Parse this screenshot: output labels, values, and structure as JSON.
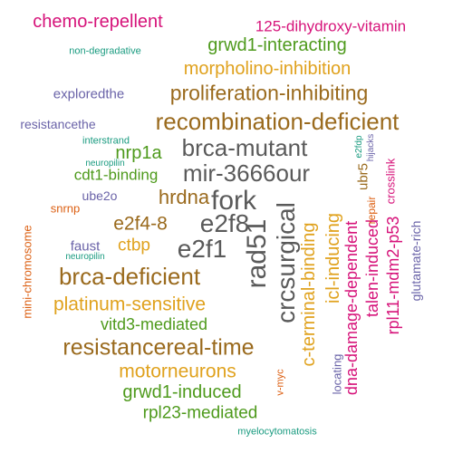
{
  "words": [
    {
      "text": "chemo-repellent",
      "color": "pink"
    },
    {
      "text": "125-dihydroxy-vitamin",
      "color": "pink"
    },
    {
      "text": "grwd1-interacting",
      "color": "green"
    },
    {
      "text": "non-degradative",
      "color": "teal"
    },
    {
      "text": "morpholino-inhibition",
      "color": "gold"
    },
    {
      "text": "exploredthe",
      "color": "purple"
    },
    {
      "text": "proliferation-inhibiting",
      "color": "brown"
    },
    {
      "text": "resistancethe",
      "color": "purple"
    },
    {
      "text": "recombination-deficient",
      "color": "brown"
    },
    {
      "text": "interstrand",
      "color": "teal"
    },
    {
      "text": "neuropilin",
      "color": "teal"
    },
    {
      "text": "nrp1a",
      "color": "green"
    },
    {
      "text": "brca-mutant",
      "color": "grey"
    },
    {
      "text": "mir-3666our",
      "color": "grey"
    },
    {
      "text": "cdt1-binding",
      "color": "green"
    },
    {
      "text": "ube2o",
      "color": "purple"
    },
    {
      "text": "hrdna",
      "color": "brown"
    },
    {
      "text": "fork",
      "color": "grey"
    },
    {
      "text": "snrnp",
      "color": "orange"
    },
    {
      "text": "e2f4-8",
      "color": "brown"
    },
    {
      "text": "e2f8",
      "color": "grey"
    },
    {
      "text": "faust",
      "color": "purple"
    },
    {
      "text": "neuropilin",
      "color": "teal"
    },
    {
      "text": "ctbp",
      "color": "gold"
    },
    {
      "text": "e2f1",
      "color": "grey"
    },
    {
      "text": "brca-deficient",
      "color": "brown"
    },
    {
      "text": "platinum-sensitive",
      "color": "gold"
    },
    {
      "text": "vitd3-mediated",
      "color": "green"
    },
    {
      "text": "resistancereal-time",
      "color": "brown"
    },
    {
      "text": "motorneurons",
      "color": "gold"
    },
    {
      "text": "grwd1-induced",
      "color": "green"
    },
    {
      "text": "rpl23-mediated",
      "color": "green"
    },
    {
      "text": "myelocytomatosis",
      "color": "teal"
    },
    {
      "text": "mini-chromosome",
      "color": "orange"
    },
    {
      "text": "rad51",
      "color": "grey"
    },
    {
      "text": "crcsurgical",
      "color": "grey"
    },
    {
      "text": "c-terminal-binding",
      "color": "gold"
    },
    {
      "text": "icl-inducing",
      "color": "gold"
    },
    {
      "text": "v-myc",
      "color": "orange"
    },
    {
      "text": "locating",
      "color": "purple"
    },
    {
      "text": "dna-damage-dependent",
      "color": "pink"
    },
    {
      "text": "ubr5",
      "color": "brown"
    },
    {
      "text": "e2fdp",
      "color": "teal"
    },
    {
      "text": "talen-induced",
      "color": "pink"
    },
    {
      "text": "repair",
      "color": "orange"
    },
    {
      "text": "hijacks",
      "color": "purple"
    },
    {
      "text": "rpl11-mdm2-p53",
      "color": "pink"
    },
    {
      "text": "crosslink",
      "color": "pink"
    },
    {
      "text": "glutamate-rich",
      "color": "purple"
    }
  ]
}
